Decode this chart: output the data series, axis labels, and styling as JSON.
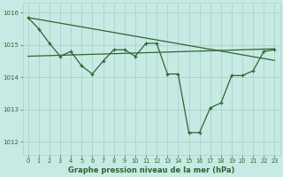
{
  "title": "Graphe pression niveau de la mer (hPa)",
  "bg_color": "#c8eae4",
  "grid_color": "#a8d4cc",
  "line_color": "#2d6632",
  "x_ticks": [
    0,
    1,
    2,
    3,
    4,
    5,
    6,
    7,
    8,
    9,
    10,
    11,
    12,
    13,
    14,
    15,
    16,
    17,
    18,
    19,
    20,
    21,
    22,
    23
  ],
  "ylim": [
    1011.6,
    1016.3
  ],
  "yticks": [
    1012,
    1013,
    1014,
    1015,
    1016
  ],
  "y_main": [
    1015.85,
    1015.5,
    1015.05,
    1014.65,
    1014.8,
    1014.35,
    1014.1,
    1014.5,
    1014.85,
    1014.85,
    1014.65,
    1015.05,
    1015.05,
    1014.1,
    1014.1,
    1012.28,
    1012.28,
    1013.05,
    1013.2,
    1014.05,
    1014.05,
    1014.2,
    1014.8,
    1014.85
  ],
  "trend1_x0": 0,
  "trend1_x1": 23,
  "trend1_y0": 1015.85,
  "trend1_y1": 1014.52,
  "trend2_x0": 0,
  "trend2_x1": 23,
  "trend2_y0": 1014.65,
  "trend2_y1": 1014.88
}
